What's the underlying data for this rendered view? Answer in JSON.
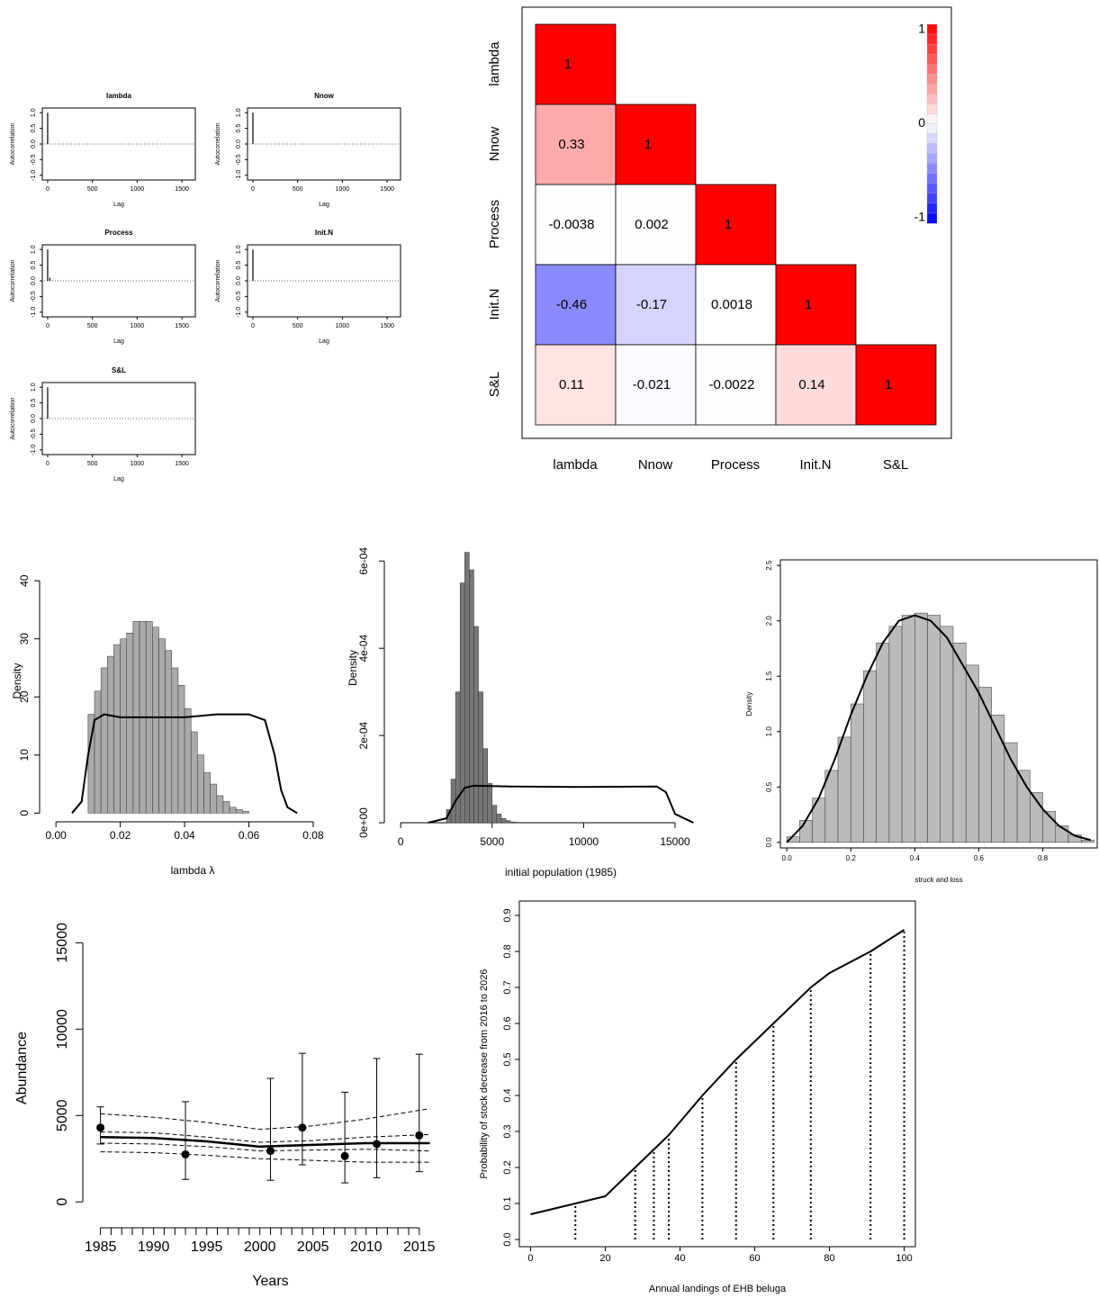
{
  "chart_data": [
    {
      "type": "acf",
      "title": "lambda",
      "xlabel": "Lag",
      "ylabel": "Autocorrelation",
      "x": [
        0
      ],
      "values": [
        1
      ],
      "xlim": [
        -60,
        1650
      ],
      "ylim": [
        -1.15,
        1.15
      ],
      "xticks": [
        0,
        500,
        1000,
        1500
      ],
      "yticks": [
        {
          "value": -1,
          "label": "-1.0"
        },
        -0.5,
        {
          "value": 0,
          "label": "0.0"
        },
        0.5,
        {
          "value": 1,
          "label": "1.0"
        }
      ],
      "box": true,
      "color": "#000000"
    },
    {
      "type": "acf",
      "title": "Nnow",
      "xlabel": "Lag",
      "ylabel": "Autocorrelation",
      "x": [
        0
      ],
      "values": [
        1
      ],
      "xlim": [
        -60,
        1650
      ],
      "ylim": [
        -1.15,
        1.15
      ],
      "xticks": [
        0,
        500,
        1000,
        1500
      ],
      "yticks": [
        {
          "value": -1,
          "label": "-1.0"
        },
        -0.5,
        {
          "value": 0,
          "label": "0.0"
        },
        0.5,
        {
          "value": 1,
          "label": "1.0"
        }
      ],
      "box": true,
      "color": "#000000"
    },
    {
      "type": "acf",
      "title": "Process",
      "xlabel": "Lag",
      "ylabel": "Autocorrelation",
      "x": [
        0,
        25
      ],
      "values": [
        1,
        0.1
      ],
      "xlim": [
        -60,
        1650
      ],
      "ylim": [
        -1.15,
        1.15
      ],
      "xticks": [
        0,
        500,
        1000,
        1500
      ],
      "yticks": [
        {
          "value": -1,
          "label": "-1.0"
        },
        -0.5,
        {
          "value": 0,
          "label": "0.0"
        },
        0.5,
        {
          "value": 1,
          "label": "1.0"
        }
      ],
      "box": true,
      "color": "#000000"
    },
    {
      "type": "acf",
      "title": "Init.N",
      "xlabel": "Lag",
      "ylabel": "Autocorrelation",
      "x": [
        0
      ],
      "values": [
        1
      ],
      "xlim": [
        -60,
        1650
      ],
      "ylim": [
        -1.15,
        1.15
      ],
      "xticks": [
        0,
        500,
        1000,
        1500
      ],
      "yticks": [
        {
          "value": -1,
          "label": "-1.0"
        },
        -0.5,
        {
          "value": 0,
          "label": "0.0"
        },
        0.5,
        {
          "value": 1,
          "label": "1.0"
        }
      ],
      "box": true,
      "color": "#000000"
    },
    {
      "type": "acf",
      "title": "S&L",
      "xlabel": "Lag",
      "ylabel": "Autocorrelation",
      "x": [
        0
      ],
      "values": [
        1
      ],
      "xlim": [
        -60,
        1650
      ],
      "ylim": [
        -1.15,
        1.15
      ],
      "xticks": [
        0,
        500,
        1000,
        1500
      ],
      "yticks": [
        {
          "value": -1,
          "label": "-1.0"
        },
        -0.5,
        {
          "value": 0,
          "label": "0.0"
        },
        0.5,
        {
          "value": 1,
          "label": "1.0"
        }
      ],
      "box": true,
      "color": "#000000"
    },
    {
      "type": "heatmap",
      "labels": [
        "lambda",
        "Nnow",
        "Process",
        "Init.N",
        "S&L"
      ],
      "matrix": [
        [
          1
        ],
        [
          0.33,
          1
        ],
        [
          -0.0038,
          0.002,
          1
        ],
        [
          -0.46,
          -0.17,
          0.0018,
          1
        ],
        [
          0.11,
          -0.021,
          -0.0022,
          0.14,
          1
        ]
      ],
      "zlim": [
        -1,
        1
      ],
      "legend_ticks": [
        1,
        0,
        -1
      ],
      "low_color": "#0000ff",
      "mid_color": "#ffffff",
      "high_color": "#ff0000"
    },
    {
      "type": "histogram",
      "xlabel": "lambda λ",
      "ylabel": "Density",
      "color": "#aaaaaa",
      "bins": [
        0.01,
        0.012,
        0.014,
        0.016,
        0.018,
        0.02,
        0.022,
        0.024,
        0.026,
        0.028,
        0.03,
        0.032,
        0.034,
        0.036,
        0.038,
        0.04,
        0.042,
        0.044,
        0.046,
        0.048,
        0.05,
        0.052,
        0.054,
        0.056,
        0.058,
        0.06
      ],
      "values": [
        17,
        21,
        25,
        27,
        29,
        30,
        31,
        33,
        33,
        33,
        32,
        30,
        28,
        25,
        22,
        18,
        14,
        10,
        7,
        5,
        3,
        2,
        1,
        0.6,
        0.3
      ],
      "curve": {
        "x": [
          0.005,
          0.008,
          0.01,
          0.012,
          0.015,
          0.02,
          0.03,
          0.04,
          0.05,
          0.06,
          0.065,
          0.068,
          0.07,
          0.072,
          0.075
        ],
        "values": [
          0,
          2,
          10,
          16,
          17,
          16.5,
          16.5,
          16.5,
          17,
          17,
          16,
          10,
          4,
          1,
          0
        ]
      },
      "xlim": [
        -0.002,
        0.087
      ],
      "ylim": [
        -1.5,
        47
      ],
      "xticks": [
        {
          "value": 0,
          "label": "0.00"
        },
        0.02,
        0.04,
        0.06,
        0.08
      ],
      "yticks": [
        0,
        10,
        20,
        30,
        40
      ],
      "box": false
    },
    {
      "type": "histogram",
      "xlabel": "initial population (1985)",
      "ylabel": "Density",
      "color": "#777777",
      "bins": [
        2500,
        2750,
        3000,
        3250,
        3500,
        3750,
        4000,
        4250,
        4500,
        4750,
        5000,
        5250,
        5500,
        5750,
        6000,
        6250,
        6500
      ],
      "values": [
        3e-05,
        0.0001,
        0.0003,
        0.00055,
        0.00062,
        0.00058,
        0.00045,
        0.0003,
        0.00017,
        9e-05,
        4e-05,
        2e-05,
        1e-05,
        5e-06,
        2e-06,
        1e-06
      ],
      "curve": {
        "x": [
          1500,
          2500,
          3000,
          3500,
          4000,
          6000,
          10000,
          14000,
          14500,
          15000,
          16000
        ],
        "values": [
          0,
          1e-05,
          5e-05,
          8e-05,
          8.5e-05,
          8.3e-05,
          8.2e-05,
          8.3e-05,
          7e-05,
          2e-05,
          0
        ]
      },
      "xlim": [
        -500,
        18000
      ],
      "ylim": [
        0,
        0.00071
      ],
      "xticks": [
        0,
        5000,
        10000,
        15000
      ],
      "yticks": [
        {
          "value": 0,
          "label": "0e+00"
        },
        {
          "value": 0.0002,
          "label": "2e-04"
        },
        {
          "value": 0.0004,
          "label": "4e-04"
        },
        {
          "value": 0.0006,
          "label": "6e-04"
        }
      ],
      "box": false
    },
    {
      "type": "histogram",
      "xlabel": "struck and loss",
      "ylabel": "Density",
      "color": "#bbbbbb",
      "bins": [
        0,
        0.04,
        0.08,
        0.12,
        0.16,
        0.2,
        0.24,
        0.28,
        0.32,
        0.36,
        0.4,
        0.44,
        0.48,
        0.52,
        0.56,
        0.6,
        0.64,
        0.68,
        0.72,
        0.76,
        0.8,
        0.84,
        0.88,
        0.92,
        0.96
      ],
      "values": [
        0.05,
        0.2,
        0.4,
        0.65,
        0.95,
        1.25,
        1.55,
        1.8,
        1.95,
        2.05,
        2.07,
        2.05,
        1.95,
        1.8,
        1.6,
        1.4,
        1.15,
        0.9,
        0.65,
        0.45,
        0.28,
        0.15,
        0.07,
        0.02
      ],
      "curve": {
        "x": [
          0.0,
          0.05,
          0.1,
          0.15,
          0.2,
          0.25,
          0.3,
          0.35,
          0.4,
          0.45,
          0.5,
          0.55,
          0.6,
          0.65,
          0.7,
          0.75,
          0.8,
          0.85,
          0.9,
          0.95
        ],
        "values": [
          0,
          0.15,
          0.4,
          0.75,
          1.15,
          1.5,
          1.8,
          2.0,
          2.05,
          2.0,
          1.85,
          1.6,
          1.35,
          1.05,
          0.75,
          0.5,
          0.3,
          0.15,
          0.06,
          0.02
        ]
      },
      "xlim": [
        -0.02,
        0.97
      ],
      "ylim": [
        -0.05,
        2.55
      ],
      "xticks": [
        {
          "value": 0,
          "label": "0.0"
        },
        0.2,
        0.4,
        0.6,
        0.8
      ],
      "yticks": [
        {
          "value": 0,
          "label": "0.0"
        },
        0.5,
        {
          "value": 1,
          "label": "1.0"
        },
        1.5,
        {
          "value": 2,
          "label": "2.0"
        },
        2.5
      ],
      "box": true
    },
    {
      "type": "line",
      "xlabel": "Years",
      "ylabel": "Abundance",
      "x": [
        1985,
        1990,
        1995,
        2000,
        2005,
        2010,
        2016
      ],
      "series": [
        {
          "values": [
            3750,
            3700,
            3500,
            3200,
            3300,
            3400,
            3400
          ],
          "style": "solid",
          "width": 2.5
        },
        {
          "values": [
            4050,
            4000,
            3750,
            3450,
            3550,
            3750,
            3900
          ],
          "style": "dashed",
          "width": 1
        },
        {
          "values": [
            3400,
            3350,
            3200,
            2950,
            3000,
            3050,
            2950
          ],
          "style": "dashed",
          "width": 1
        },
        {
          "values": [
            5100,
            4900,
            4600,
            4200,
            4400,
            4800,
            5400
          ],
          "style": "dashed",
          "width": 1
        },
        {
          "values": [
            2900,
            2850,
            2700,
            2500,
            2400,
            2300,
            2300
          ],
          "style": "dashed",
          "width": 1
        }
      ],
      "observations": {
        "x": [
          1985,
          1993,
          2001,
          2004,
          2008,
          2011,
          2015
        ],
        "values": [
          4300,
          2750,
          2950,
          4300,
          2650,
          3350,
          3850
        ],
        "lower": [
          3350,
          1300,
          1250,
          2150,
          1100,
          1400,
          1750
        ],
        "upper": [
          5500,
          5800,
          7150,
          8600,
          6350,
          8300,
          8550
        ]
      },
      "xlim": [
        1983,
        2019
      ],
      "ylim": [
        -1500,
        17000
      ],
      "xticks": [
        1985,
        1990,
        1995,
        2000,
        2005,
        2010,
        2015
      ],
      "yticks": [
        0,
        5000,
        10000,
        15000
      ],
      "minor_ticks": true,
      "box": false,
      "color": "#000000"
    },
    {
      "type": "line",
      "xlabel": "Annual landings of EHB beluga",
      "ylabel": "Probability of stock decrease from 2016 to 2026",
      "x": [
        0,
        12,
        20,
        28,
        33,
        37,
        46,
        55,
        65,
        75,
        80,
        91,
        100
      ],
      "series": [
        {
          "values": [
            0.07,
            0.1,
            0.12,
            0.2,
            0.25,
            0.29,
            0.4,
            0.5,
            0.6,
            0.7,
            0.74,
            0.8,
            0.86
          ],
          "style": "solid",
          "width": 2
        }
      ],
      "droplines": {
        "x": [
          12,
          28,
          33,
          37,
          46,
          55,
          65,
          75,
          91,
          100
        ],
        "values": [
          0.1,
          0.2,
          0.25,
          0.3,
          0.4,
          0.5,
          0.6,
          0.7,
          0.8,
          0.86
        ]
      },
      "xlim": [
        -3,
        103
      ],
      "ylim": [
        -0.02,
        0.94
      ],
      "xticks": [
        0,
        20,
        40,
        60,
        80,
        100
      ],
      "yticks": [
        {
          "value": 0,
          "label": "0.0"
        },
        0.1,
        0.2,
        0.3,
        0.4,
        0.5,
        0.6,
        0.7,
        0.8,
        0.9
      ],
      "box": true,
      "color": "#000000"
    }
  ]
}
